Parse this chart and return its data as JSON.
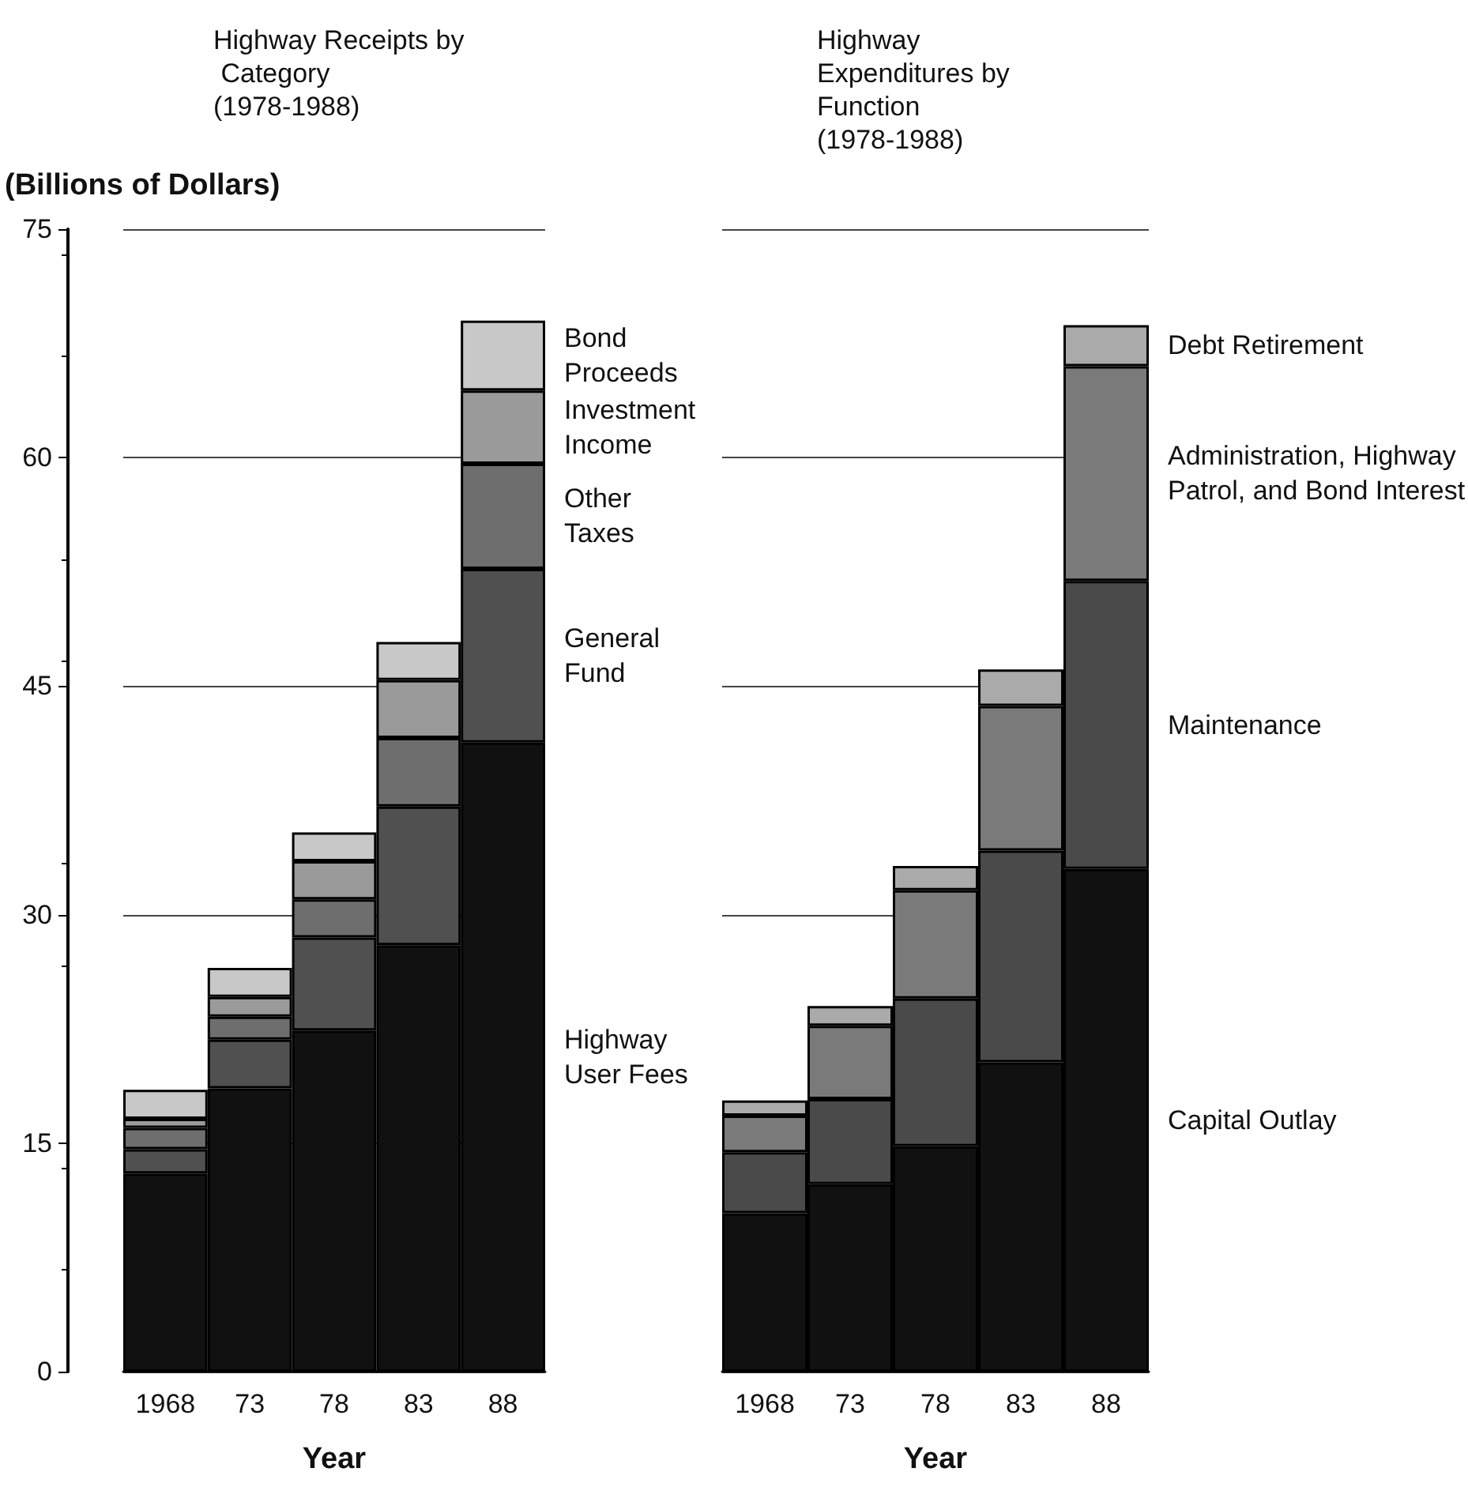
{
  "chart_data": [
    {
      "type": "bar",
      "stacked": true,
      "title": "Highway Receipts by Category (1978-1988)",
      "ylabel": "(Billions of Dollars)",
      "xlabel": "Year",
      "categories": [
        "1968",
        "73",
        "78",
        "83",
        "88"
      ],
      "series": [
        {
          "name": "Highway User Fees",
          "color": "#111111",
          "values": [
            13.0,
            18.6,
            22.4,
            28.0,
            41.3
          ]
        },
        {
          "name": "General Fund",
          "color": "#505050",
          "values": [
            1.6,
            3.2,
            6.1,
            9.1,
            11.4
          ]
        },
        {
          "name": "Other Taxes",
          "color": "#6e6e6e",
          "values": [
            1.4,
            1.5,
            2.5,
            4.5,
            6.9
          ]
        },
        {
          "name": "Investment Income",
          "color": "#9a9a9a",
          "values": [
            0.6,
            1.3,
            2.5,
            3.8,
            4.8
          ]
        },
        {
          "name": "Bond Proceeds",
          "color": "#c8c8c8",
          "values": [
            1.9,
            1.9,
            1.9,
            2.5,
            4.6
          ]
        }
      ],
      "ylim": [
        0,
        75
      ],
      "yticks": [
        0,
        15,
        30,
        45,
        60,
        75
      ],
      "grid": "y"
    },
    {
      "type": "bar",
      "stacked": true,
      "title": "Highway Expenditures by Function (1978-1988)",
      "xlabel": "Year",
      "categories": [
        "1968",
        "73",
        "78",
        "83",
        "88"
      ],
      "series": [
        {
          "name": "Capital Outlay",
          "color": "#111111",
          "values": [
            10.4,
            12.3,
            14.8,
            20.3,
            33.0
          ]
        },
        {
          "name": "Maintenance",
          "color": "#4a4a4a",
          "values": [
            4.0,
            5.6,
            9.7,
            13.9,
            18.9
          ]
        },
        {
          "name": "Administration, Highway Patrol, and Bond Interest",
          "color": "#7a7a7a",
          "values": [
            2.4,
            4.8,
            7.1,
            9.5,
            14.1
          ]
        },
        {
          "name": "Debt Retirement",
          "color": "#aaaaaa",
          "values": [
            1.0,
            1.3,
            1.6,
            2.4,
            2.7
          ]
        }
      ],
      "ylim": [
        0,
        75
      ],
      "yticks": [
        0,
        15,
        30,
        45,
        60,
        75
      ],
      "grid": "y",
      "tick_labels": "x"
    }
  ]
}
